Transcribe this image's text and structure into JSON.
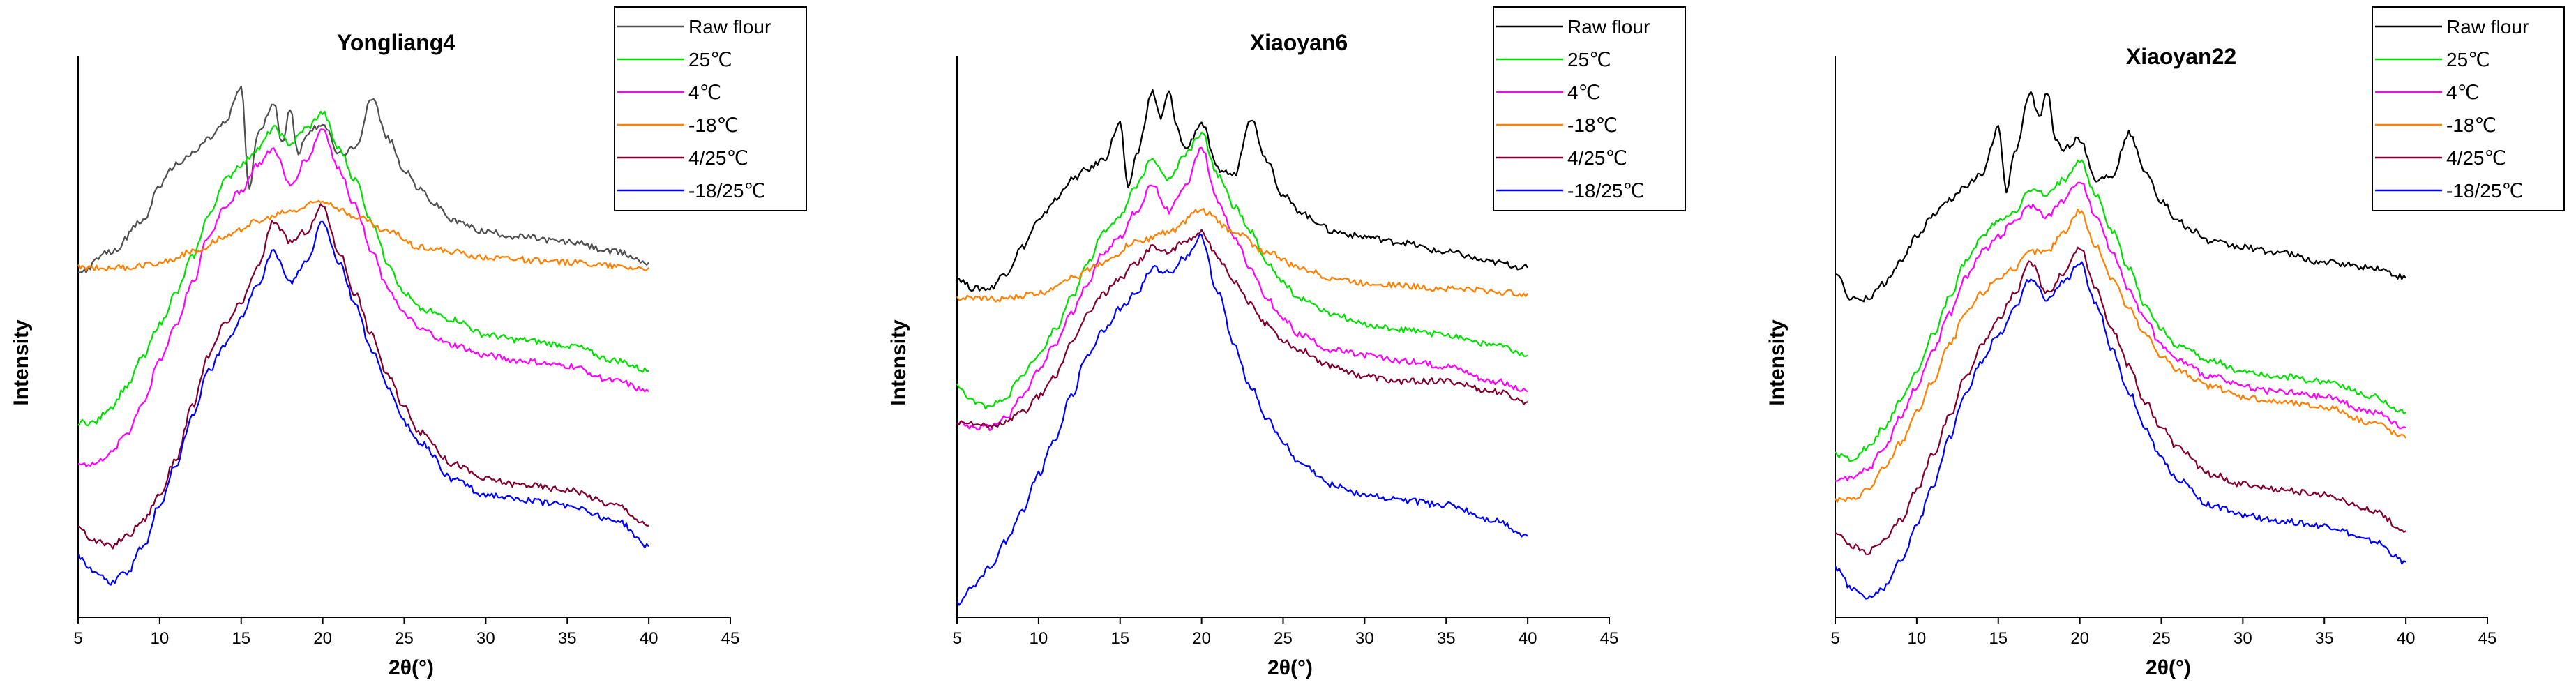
{
  "chart_data": [
    {
      "type": "line",
      "title": "Yongliang4",
      "xlabel": "2θ(°)",
      "ylabel": "Intensity",
      "xlim": [
        5,
        45
      ],
      "xticks": [
        5,
        10,
        15,
        20,
        25,
        30,
        35,
        40,
        45
      ],
      "yticks_shown": false,
      "ylim": [
        0,
        100
      ],
      "legend_position": "top-right",
      "series": [
        {
          "name": "Raw flour",
          "color": "#505050",
          "x": [
            5,
            7,
            9,
            10,
            11,
            12,
            13,
            14,
            15,
            15.5,
            16,
            17,
            17.5,
            18,
            18.5,
            19,
            20,
            21,
            22,
            23,
            24,
            25,
            26,
            27,
            28,
            30,
            32,
            35,
            38,
            40
          ],
          "y": [
            62,
            66,
            72,
            79,
            83,
            85,
            88,
            91,
            98,
            78,
            89,
            95,
            87,
            94,
            85,
            89,
            91,
            85,
            86,
            96,
            88,
            82,
            78,
            75,
            72,
            70,
            69,
            68,
            66,
            64
          ]
        },
        {
          "name": "25℃",
          "color": "#00e000",
          "x": [
            5,
            6,
            7,
            8,
            9,
            10,
            11,
            12,
            13,
            14,
            15,
            16,
            17,
            18,
            19,
            20,
            21,
            22,
            23,
            24,
            25,
            26,
            28,
            30,
            32,
            35,
            38,
            40
          ],
          "y": [
            33,
            33,
            36,
            40,
            46,
            52,
            58,
            65,
            73,
            80,
            83,
            86,
            90,
            87,
            90,
            93,
            86,
            80,
            72,
            64,
            58,
            55,
            53,
            50,
            49,
            48,
            45,
            43
          ]
        },
        {
          "name": "4℃",
          "color": "#ff00ff",
          "x": [
            5,
            6,
            7,
            8,
            9,
            10,
            11,
            12,
            13,
            14,
            15,
            16,
            17,
            18,
            19,
            20,
            21,
            22,
            23,
            24,
            25,
            26,
            28,
            30,
            32,
            35,
            38,
            40
          ],
          "y": [
            25,
            25,
            27,
            31,
            37,
            45,
            52,
            60,
            69,
            75,
            78,
            83,
            86,
            79,
            84,
            90,
            82,
            75,
            66,
            59,
            54,
            51,
            48,
            46,
            45,
            44,
            41,
            39
          ]
        },
        {
          "name": "-18℃",
          "color": "#ff8000",
          "x": [
            5,
            8,
            10,
            12,
            14,
            16,
            18,
            20,
            22,
            24,
            26,
            28,
            30,
            35,
            40
          ],
          "y": [
            63,
            63,
            64,
            66,
            69,
            72,
            74,
            76,
            73,
            70,
            67,
            66,
            65,
            64,
            63
          ]
        },
        {
          "name": "4/25℃",
          "color": "#800030",
          "x": [
            5,
            6,
            7,
            8,
            9,
            10,
            11,
            12,
            13,
            14,
            15,
            16,
            17,
            18,
            19,
            20,
            21,
            22,
            23,
            24,
            25,
            26,
            28,
            30,
            32,
            35,
            38,
            40
          ],
          "y": [
            13,
            10,
            9,
            11,
            14,
            19,
            26,
            36,
            46,
            52,
            56,
            63,
            72,
            68,
            70,
            75,
            66,
            58,
            50,
            42,
            36,
            31,
            25,
            22,
            21,
            20,
            17,
            13
          ]
        },
        {
          "name": "-18/25℃",
          "color": "#0000ff",
          "x": [
            5,
            6,
            7,
            8,
            9,
            10,
            11,
            12,
            13,
            14,
            15,
            16,
            17,
            18,
            19,
            20,
            21,
            22,
            23,
            24,
            25,
            26,
            28,
            30,
            32,
            35,
            38,
            40
          ],
          "y": [
            7,
            4,
            2,
            4,
            9,
            17,
            25,
            34,
            43,
            48,
            53,
            60,
            66,
            60,
            64,
            72,
            64,
            56,
            47,
            40,
            33,
            29,
            22,
            19,
            18,
            17,
            14,
            9
          ]
        }
      ]
    },
    {
      "type": "line",
      "title": "Xiaoyan6",
      "xlabel": "2θ(°)",
      "ylabel": "Intensity",
      "xlim": [
        5,
        45
      ],
      "xticks": [
        5,
        10,
        15,
        20,
        25,
        30,
        35,
        40,
        45
      ],
      "yticks_shown": false,
      "ylim": [
        0,
        100
      ],
      "legend_position": "top-right",
      "series": [
        {
          "name": "Raw flour",
          "color": "#000000",
          "x": [
            5,
            6,
            7,
            8,
            9,
            10,
            11,
            12,
            13,
            14,
            15,
            15.5,
            16,
            17,
            17.5,
            18,
            18.5,
            19,
            20,
            21,
            22,
            23,
            24,
            25,
            26,
            27,
            28,
            30,
            32,
            35,
            38,
            40
          ],
          "y": [
            61,
            59,
            59,
            62,
            67,
            72,
            76,
            80,
            82,
            84,
            91,
            78,
            85,
            97,
            92,
            97,
            90,
            86,
            91,
            82,
            81,
            92,
            84,
            77,
            74,
            72,
            70,
            69,
            68,
            66,
            64,
            63
          ]
        },
        {
          "name": "25℃",
          "color": "#00e000",
          "x": [
            5,
            6,
            7,
            8,
            9,
            10,
            11,
            12,
            13,
            14,
            15,
            16,
            17,
            18,
            19,
            20,
            21,
            22,
            23,
            24,
            25,
            26,
            28,
            30,
            32,
            35,
            38,
            40
          ],
          "y": [
            40,
            37,
            36,
            38,
            42,
            46,
            51,
            57,
            64,
            70,
            73,
            79,
            84,
            80,
            85,
            89,
            81,
            75,
            70,
            64,
            60,
            57,
            54,
            52,
            51,
            50,
            48,
            46
          ]
        },
        {
          "name": "4℃",
          "color": "#ff00ff",
          "x": [
            5,
            6,
            7,
            8,
            9,
            10,
            11,
            12,
            13,
            14,
            15,
            16,
            17,
            18,
            19,
            20,
            21,
            22,
            23,
            24,
            25,
            26,
            28,
            30,
            32,
            35,
            38,
            40
          ],
          "y": [
            33,
            32,
            32,
            34,
            38,
            43,
            48,
            54,
            60,
            66,
            69,
            74,
            79,
            74,
            79,
            86,
            76,
            69,
            63,
            57,
            53,
            50,
            47,
            46,
            45,
            44,
            41,
            39
          ]
        },
        {
          "name": "-18℃",
          "color": "#ff8000",
          "x": [
            5,
            8,
            10,
            12,
            14,
            16,
            18,
            20,
            22,
            24,
            26,
            28,
            30,
            35,
            40
          ],
          "y": [
            57,
            57,
            58,
            61,
            64,
            68,
            70,
            74,
            70,
            66,
            63,
            61,
            60,
            59,
            58
          ]
        },
        {
          "name": "4/25℃",
          "color": "#800030",
          "x": [
            5,
            6,
            7,
            8,
            9,
            10,
            11,
            12,
            13,
            14,
            15,
            16,
            17,
            18,
            19,
            20,
            21,
            22,
            23,
            24,
            25,
            26,
            28,
            30,
            32,
            35,
            38,
            40
          ],
          "y": [
            33,
            33,
            32,
            33,
            35,
            38,
            42,
            48,
            54,
            58,
            61,
            64,
            67,
            66,
            68,
            70,
            65,
            60,
            56,
            52,
            49,
            47,
            44,
            42,
            41,
            41,
            39,
            37
          ]
        },
        {
          "name": "-18/25℃",
          "color": "#0000ff",
          "x": [
            5,
            6,
            7,
            8,
            9,
            10,
            11,
            12,
            13,
            14,
            15,
            16,
            17,
            18,
            19,
            20,
            21,
            22,
            23,
            24,
            25,
            26,
            28,
            30,
            32,
            35,
            38,
            40
          ],
          "y": [
            -2,
            1,
            5,
            10,
            16,
            23,
            30,
            38,
            46,
            51,
            55,
            58,
            63,
            62,
            65,
            69,
            58,
            48,
            40,
            34,
            29,
            25,
            21,
            19,
            18,
            17,
            14,
            11
          ]
        }
      ]
    },
    {
      "type": "line",
      "title": "Xiaoyan22",
      "xlabel": "2θ(°)",
      "ylabel": "Intensity",
      "xlim": [
        5,
        45
      ],
      "xticks": [
        5,
        10,
        15,
        20,
        25,
        30,
        35,
        40,
        45
      ],
      "yticks_shown": false,
      "ylim": [
        0,
        100
      ],
      "legend_position": "top-right",
      "series": [
        {
          "name": "Raw flour",
          "color": "#000000",
          "x": [
            5,
            6,
            7,
            8,
            9,
            10,
            11,
            12,
            13,
            14,
            15,
            15.5,
            16,
            17,
            17.5,
            18,
            18.5,
            19,
            20,
            21,
            22,
            23,
            24,
            25,
            26,
            27,
            28,
            30,
            32,
            35,
            38,
            40
          ],
          "y": [
            62,
            57,
            57,
            60,
            64,
            69,
            73,
            76,
            79,
            81,
            90,
            78,
            85,
            97,
            92,
            97,
            88,
            86,
            88,
            80,
            81,
            89,
            82,
            76,
            72,
            70,
            68,
            67,
            66,
            64,
            63,
            61
          ]
        },
        {
          "name": "25℃",
          "color": "#00e000",
          "x": [
            5,
            6,
            7,
            8,
            9,
            10,
            11,
            12,
            13,
            14,
            15,
            16,
            17,
            18,
            19,
            20,
            21,
            22,
            23,
            24,
            25,
            26,
            28,
            30,
            32,
            35,
            38,
            40
          ],
          "y": [
            27,
            26,
            28,
            32,
            37,
            43,
            50,
            57,
            64,
            69,
            72,
            74,
            78,
            77,
            80,
            84,
            77,
            70,
            63,
            56,
            51,
            48,
            45,
            43,
            42,
            41,
            38,
            35
          ]
        },
        {
          "name": "4℃",
          "color": "#ff00ff",
          "x": [
            5,
            6,
            7,
            8,
            9,
            10,
            11,
            12,
            13,
            14,
            15,
            16,
            17,
            18,
            19,
            20,
            21,
            22,
            23,
            24,
            25,
            26,
            28,
            30,
            32,
            35,
            38,
            40
          ],
          "y": [
            22,
            22,
            24,
            28,
            34,
            40,
            47,
            54,
            61,
            66,
            69,
            72,
            75,
            73,
            76,
            80,
            73,
            66,
            59,
            53,
            48,
            45,
            42,
            40,
            39,
            38,
            35,
            32
          ]
        },
        {
          "name": "-18℃",
          "color": "#ff8000",
          "x": [
            5,
            6,
            7,
            8,
            9,
            10,
            11,
            12,
            13,
            14,
            15,
            16,
            17,
            18,
            19,
            20,
            21,
            22,
            23,
            24,
            25,
            26,
            28,
            30,
            32,
            35,
            38,
            40
          ],
          "y": [
            18,
            18,
            20,
            24,
            29,
            35,
            41,
            48,
            54,
            58,
            61,
            63,
            66,
            66,
            70,
            74,
            67,
            61,
            55,
            50,
            46,
            43,
            40,
            38,
            37,
            36,
            33,
            30
          ]
        },
        {
          "name": "4/25℃",
          "color": "#800030",
          "x": [
            5,
            6,
            7,
            8,
            9,
            10,
            11,
            12,
            13,
            14,
            15,
            16,
            17,
            18,
            19,
            20,
            21,
            22,
            23,
            24,
            25,
            26,
            28,
            30,
            32,
            35,
            38,
            40
          ],
          "y": [
            12,
            9,
            8,
            10,
            14,
            20,
            27,
            34,
            42,
            48,
            53,
            58,
            64,
            58,
            62,
            67,
            59,
            51,
            44,
            37,
            32,
            28,
            23,
            21,
            20,
            19,
            16,
            12
          ]
        },
        {
          "name": "-18/25℃",
          "color": "#0000ff",
          "x": [
            5,
            6,
            7,
            8,
            9,
            10,
            11,
            12,
            13,
            14,
            15,
            16,
            17,
            18,
            19,
            20,
            21,
            22,
            23,
            24,
            25,
            26,
            28,
            30,
            32,
            35,
            38,
            40
          ],
          "y": [
            5,
            1,
            -1,
            1,
            6,
            13,
            21,
            30,
            39,
            45,
            50,
            55,
            61,
            57,
            60,
            64,
            56,
            47,
            39,
            32,
            26,
            22,
            17,
            15,
            14,
            13,
            10,
            6
          ]
        }
      ]
    }
  ]
}
